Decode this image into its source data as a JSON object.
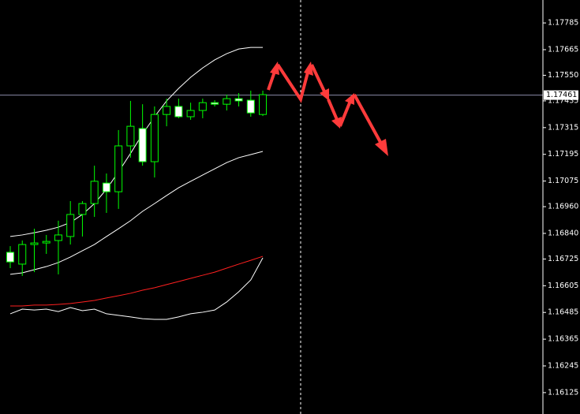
{
  "chart_data": {
    "type": "candlestick",
    "ylim": [
      1.16029,
      1.17888
    ],
    "yticks": [
      1.17785,
      1.17665,
      {
        "value": 1.1755,
        "label": "1.17550"
      },
      1.17435,
      1.17315,
      1.17195,
      1.17075,
      {
        "value": 1.1696,
        "label": "1.16960"
      },
      {
        "value": 1.1684,
        "label": "1.16840"
      },
      1.16725,
      1.16605,
      1.16485,
      1.16365,
      1.16245,
      1.16125
    ],
    "current_price": 1.17461,
    "up_color": "#00ff00",
    "down_color": "#ffffff",
    "open": [
      1.16755,
      1.16702,
      1.1679,
      1.16797,
      1.16808,
      1.16826,
      1.16925,
      1.16974,
      1.17066,
      1.17027,
      1.17233,
      1.17311,
      1.17162,
      1.17374,
      1.1741,
      1.17364,
      1.17392,
      1.17427,
      1.1742,
      1.17445,
      1.17438,
      1.17374
    ],
    "high": [
      1.16783,
      1.16808,
      1.16861,
      1.16833,
      1.16897,
      1.16985,
      1.16985,
      1.17144,
      1.17109,
      1.17304,
      1.17435,
      1.1742,
      1.1741,
      1.17445,
      1.17445,
      1.17427,
      1.17445,
      1.17438,
      1.17463,
      1.1747,
      1.17481,
      1.17481
    ],
    "low": [
      1.16684,
      1.16649,
      1.16666,
      1.16748,
      1.16656,
      1.1679,
      1.16826,
      1.16914,
      1.16932,
      1.1695,
      1.1718,
      1.17144,
      1.17091,
      1.17321,
      1.17357,
      1.1735,
      1.17357,
      1.1741,
      1.17392,
      1.1741,
      1.17364,
      1.17367
    ],
    "close": [
      1.16712,
      1.1679,
      1.16797,
      1.16804,
      1.16833,
      1.16925,
      1.16974,
      1.17074,
      1.17027,
      1.17233,
      1.17321,
      1.17162,
      1.17374,
      1.1741,
      1.17364,
      1.17392,
      1.17427,
      1.1742,
      1.17445,
      1.17435,
      1.17381,
      1.17463
    ],
    "series": [
      {
        "color": "#ffffff",
        "values": [
          1.16826,
          1.16833,
          1.16843,
          1.16854,
          1.16868,
          1.16889,
          1.16925,
          1.16974,
          1.17038,
          1.17116,
          1.17199,
          1.17286,
          1.17364,
          1.17435,
          1.17491,
          1.17541,
          1.17583,
          1.17619,
          1.17647,
          1.17668,
          1.17675,
          1.17675
        ]
      },
      {
        "color": "#ffffff",
        "values": [
          1.16656,
          1.16663,
          1.16677,
          1.16691,
          1.16709,
          1.16734,
          1.16762,
          1.1679,
          1.16826,
          1.16861,
          1.16897,
          1.16939,
          1.16974,
          1.1701,
          1.17045,
          1.17074,
          1.17102,
          1.1713,
          1.17158,
          1.1718,
          1.17194,
          1.17208
        ]
      },
      {
        "color": "#ff2020",
        "values": [
          1.16514,
          1.16514,
          1.16518,
          1.16518,
          1.16521,
          1.16525,
          1.16532,
          1.16539,
          1.1655,
          1.1656,
          1.16571,
          1.16585,
          1.16596,
          1.1661,
          1.16624,
          1.16638,
          1.16652,
          1.16666,
          1.16684,
          1.16702,
          1.16719,
          1.16737
        ]
      },
      {
        "color": "#ffffff",
        "values": [
          1.16479,
          1.165,
          1.16496,
          1.165,
          1.16489,
          1.16507,
          1.16493,
          1.165,
          1.16479,
          1.16472,
          1.16465,
          1.16457,
          1.16454,
          1.16454,
          1.16465,
          1.16479,
          1.16486,
          1.16496,
          1.16532,
          1.16578,
          1.16631,
          1.1673
        ]
      }
    ]
  }
}
